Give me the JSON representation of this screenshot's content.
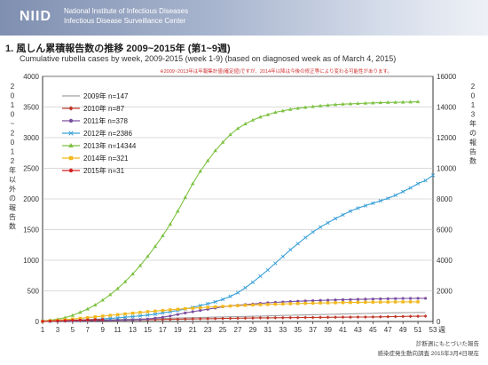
{
  "header": {
    "logo": "NIID",
    "org_en": "National Institute of Infectious Diseases",
    "center_en": "Infectious Disease Surveillance Center"
  },
  "title": "1. 風しん累積報告数の推移  2009~2015年 (第1~9週)",
  "subtitle": "Cumulative rubella cases by week, 2009-2015 (week 1-9)  (based on diagnosed week as of March 4, 2015)",
  "note": "※2009~2013年は年報集計値(確定値)ですが、2014年以降は今後の修正等により変わる可能性があります。",
  "chart_data": {
    "type": "line",
    "x_ticks": [
      "1",
      "3",
      "5",
      "7",
      "9",
      "11",
      "13",
      "15",
      "17",
      "19",
      "21",
      "23",
      "25",
      "27",
      "29",
      "31",
      "33",
      "35",
      "37",
      "39",
      "41",
      "43",
      "45",
      "47",
      "49",
      "51",
      "53"
    ],
    "xlabel": "週",
    "ylabel_left": "2010~2012年以外の報告数",
    "ylabel_right": "2013年の報告数",
    "left_ticks": [
      0,
      500,
      1000,
      1500,
      2000,
      2500,
      3000,
      3500,
      4000
    ],
    "right_ticks": [
      0,
      2000,
      4000,
      6000,
      8000,
      10000,
      12000,
      14000,
      16000
    ],
    "ylim_left": [
      0,
      4000
    ],
    "ylim_right": [
      0,
      16000
    ],
    "xlim": [
      1,
      53
    ],
    "grid": true,
    "legend_position": "top-left",
    "series": [
      {
        "name": "2009年 n=147",
        "color": "#a0a0a0",
        "marker": "none",
        "axis": "left",
        "values": [
          2,
          5,
          8,
          11,
          14,
          17,
          20,
          23,
          26,
          29,
          32,
          35,
          38,
          41,
          44,
          47,
          50,
          53,
          56,
          59,
          62,
          65,
          68,
          71,
          74,
          77,
          80,
          83,
          86,
          89,
          92,
          95,
          98,
          101,
          104,
          107,
          110,
          113,
          116,
          119,
          122,
          125,
          128,
          131,
          134,
          137,
          140,
          142,
          144,
          145,
          146,
          147
        ]
      },
      {
        "name": "2010年 n=87",
        "color": "#c0392b",
        "marker": "diamond",
        "axis": "left",
        "values": [
          1,
          3,
          5,
          7,
          9,
          11,
          13,
          15,
          17,
          19,
          21,
          23,
          25,
          27,
          29,
          31,
          33,
          35,
          37,
          39,
          41,
          43,
          45,
          47,
          49,
          51,
          53,
          55,
          57,
          59,
          60,
          61,
          62,
          63,
          64,
          65,
          66,
          67,
          68,
          69,
          70,
          71,
          72,
          73,
          74,
          76,
          78,
          80,
          82,
          84,
          85,
          87
        ]
      },
      {
        "name": "2011年 n=378",
        "color": "#7b4fa0",
        "marker": "circle",
        "axis": "left",
        "values": [
          2,
          4,
          6,
          8,
          10,
          12,
          14,
          16,
          18,
          20,
          22,
          25,
          28,
          32,
          40,
          55,
          70,
          90,
          115,
          140,
          160,
          180,
          200,
          220,
          240,
          255,
          265,
          275,
          285,
          295,
          305,
          312,
          318,
          324,
          330,
          335,
          340,
          344,
          348,
          352,
          355,
          358,
          361,
          364,
          367,
          370,
          372,
          374,
          376,
          377,
          378,
          378
        ]
      },
      {
        "name": "2012年 n=2386",
        "color": "#3aa0d8",
        "marker": "x",
        "axis": "left",
        "values": [
          5,
          8,
          12,
          16,
          20,
          25,
          30,
          36,
          42,
          50,
          60,
          70,
          80,
          92,
          105,
          120,
          140,
          160,
          180,
          205,
          230,
          260,
          290,
          320,
          360,
          410,
          470,
          550,
          640,
          740,
          840,
          950,
          1060,
          1170,
          1270,
          1370,
          1460,
          1540,
          1610,
          1680,
          1740,
          1800,
          1850,
          1890,
          1930,
          1970,
          2010,
          2060,
          2120,
          2180,
          2250,
          2300,
          2386
        ]
      },
      {
        "name": "2013年 n=14344",
        "color": "#7dc242",
        "marker": "triangle",
        "axis": "right",
        "values": [
          30,
          80,
          150,
          250,
          400,
          600,
          820,
          1080,
          1400,
          1750,
          2150,
          2600,
          3100,
          3650,
          4250,
          4900,
          5600,
          6350,
          7200,
          8100,
          9000,
          9800,
          10500,
          11150,
          11700,
          12200,
          12600,
          12900,
          13150,
          13350,
          13500,
          13650,
          13750,
          13850,
          13920,
          13980,
          14030,
          14080,
          14120,
          14160,
          14190,
          14210,
          14230,
          14250,
          14270,
          14285,
          14300,
          14310,
          14320,
          14330,
          14344
        ]
      },
      {
        "name": "2014年 n=321",
        "color": "#f2b81c",
        "marker": "square",
        "axis": "left",
        "values": [
          5,
          12,
          20,
          30,
          40,
          52,
          64,
          76,
          88,
          100,
          112,
          124,
          136,
          148,
          160,
          170,
          180,
          190,
          200,
          208,
          216,
          224,
          232,
          240,
          246,
          252,
          258,
          264,
          270,
          274,
          278,
          282,
          286,
          290,
          293,
          296,
          299,
          302,
          304,
          306,
          308,
          310,
          312,
          314,
          316,
          317,
          318,
          319,
          320,
          321,
          321
        ]
      },
      {
        "name": "2015年 n=31",
        "color": "#d61f1f",
        "marker": "circle",
        "axis": "left",
        "values": [
          3,
          7,
          11,
          15,
          19,
          23,
          26,
          29,
          31
        ]
      }
    ]
  },
  "footer": {
    "line1": "診断週にもとづいた報告",
    "line2": "感染症発生動向調査 2015年3月4日現在"
  }
}
